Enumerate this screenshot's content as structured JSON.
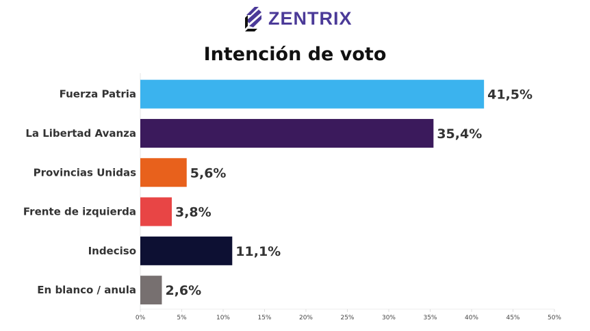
{
  "logo": {
    "text": "ZENTRIX",
    "icon": "zentrix-logo-icon"
  },
  "chart_data": {
    "type": "bar",
    "orientation": "horizontal",
    "title": "Intención de voto",
    "categories": [
      "Fuerza Patria",
      "La Libertad Avanza",
      "Provincias Unidas",
      "Frente de izquierda",
      "Indeciso",
      "En blanco / anula"
    ],
    "values": [
      41.5,
      35.4,
      5.6,
      3.8,
      11.1,
      2.6
    ],
    "data_labels": [
      "41,5%",
      "35,4%",
      "5,6%",
      "3,8%",
      "11,1%",
      "2,6%"
    ],
    "colors": [
      "#3bb3ee",
      "#3b1a5c",
      "#e8611c",
      "#e84545",
      "#0d1033",
      "#777070"
    ],
    "xlim": [
      0,
      50
    ],
    "xticks": [
      "0%",
      "5%",
      "10%",
      "15%",
      "20%",
      "25%",
      "30%",
      "35%",
      "40%",
      "45%",
      "50%"
    ],
    "grid": false,
    "legend": "none"
  }
}
